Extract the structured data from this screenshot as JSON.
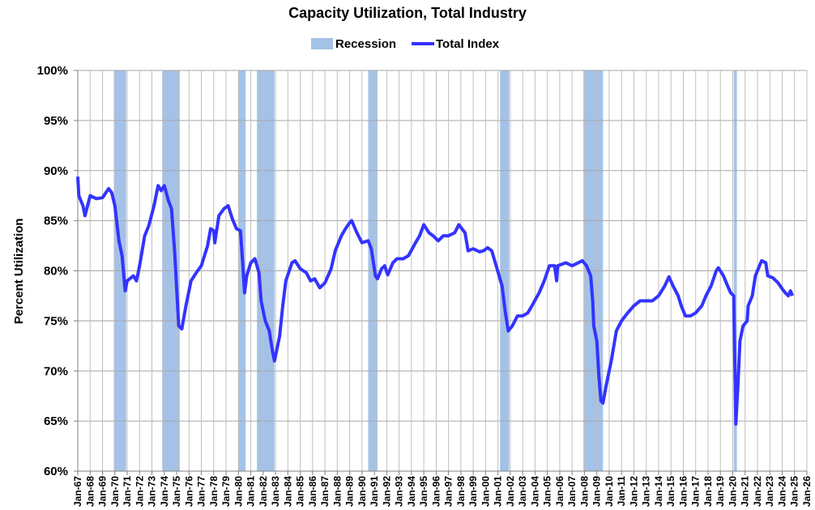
{
  "chart_data": {
    "type": "line",
    "title": "Capacity Utilization, Total Industry",
    "ylabel": "Percent Utilization",
    "xlabel": "",
    "ylim": [
      60,
      100
    ],
    "xlim": [
      "1967-01",
      "2026-01"
    ],
    "yticks": [
      "60%",
      "65%",
      "70%",
      "75%",
      "80%",
      "85%",
      "90%",
      "95%",
      "100%"
    ],
    "ytick_values": [
      60,
      65,
      70,
      75,
      80,
      85,
      90,
      95,
      100
    ],
    "xticks": [
      "Jan-67",
      "Jan-68",
      "Jan-69",
      "Jan-70",
      "Jan-71",
      "Jan-72",
      "Jan-73",
      "Jan-74",
      "Jan-75",
      "Jan-76",
      "Jan-77",
      "Jan-78",
      "Jan-79",
      "Jan-80",
      "Jan-81",
      "Jan-82",
      "Jan-83",
      "Jan-84",
      "Jan-85",
      "Jan-86",
      "Jan-87",
      "Jan-88",
      "Jan-89",
      "Jan-90",
      "Jan-91",
      "Jan-92",
      "Jan-93",
      "Jan-94",
      "Jan-95",
      "Jan-96",
      "Jan-97",
      "Jan-98",
      "Jan-99",
      "Jan-00",
      "Jan-01",
      "Jan-02",
      "Jan-03",
      "Jan-04",
      "Jan-05",
      "Jan-06",
      "Jan-07",
      "Jan-08",
      "Jan-09",
      "Jan-10",
      "Jan-11",
      "Jan-12",
      "Jan-13",
      "Jan-14",
      "Jan-15",
      "Jan-16",
      "Jan-17",
      "Jan-18",
      "Jan-19",
      "Jan-20",
      "Jan-21",
      "Jan-22",
      "Jan-23",
      "Jan-24",
      "Jan-25",
      "Jan-26"
    ],
    "grid": true,
    "legend_placement": "top",
    "legend": [
      "Recession",
      "Total Index"
    ],
    "colors": {
      "line": "#3333ff",
      "recession": "#a4c2e8",
      "grid": "#bfbfbf"
    },
    "recessions": [
      [
        "1969-12",
        "1970-11"
      ],
      [
        "1973-11",
        "1975-03"
      ],
      [
        "1980-01",
        "1980-07"
      ],
      [
        "1981-07",
        "1982-11"
      ],
      [
        "1990-07",
        "1991-03"
      ],
      [
        "2001-03",
        "2001-11"
      ],
      [
        "2007-12",
        "2009-06"
      ],
      [
        "2020-02",
        "2020-04"
      ]
    ],
    "series": [
      {
        "name": "Total Index",
        "x": [
          "1967-01",
          "1967-02",
          "1967-06",
          "1967-08",
          "1968-01",
          "1968-07",
          "1969-01",
          "1969-07",
          "1969-10",
          "1970-01",
          "1970-05",
          "1970-08",
          "1970-11",
          "1971-01",
          "1971-07",
          "1971-10",
          "1972-01",
          "1972-06",
          "1972-10",
          "1973-03",
          "1973-07",
          "1973-10",
          "1974-01",
          "1974-05",
          "1974-08",
          "1974-11",
          "1975-03",
          "1975-06",
          "1975-10",
          "1976-03",
          "1976-08",
          "1977-01",
          "1977-07",
          "1977-10",
          "1978-01",
          "1978-02",
          "1978-06",
          "1978-11",
          "1979-03",
          "1979-07",
          "1979-11",
          "1980-03",
          "1980-05",
          "1980-07",
          "1980-09",
          "1981-01",
          "1981-05",
          "1981-07",
          "1981-09",
          "1981-11",
          "1982-03",
          "1982-07",
          "1982-10",
          "1982-12",
          "1983-05",
          "1983-08",
          "1983-11",
          "1984-05",
          "1984-08",
          "1985-01",
          "1985-07",
          "1985-11",
          "1986-03",
          "1986-08",
          "1987-01",
          "1987-07",
          "1987-11",
          "1988-05",
          "1988-09",
          "1989-01",
          "1989-03",
          "1989-08",
          "1990-01",
          "1990-07",
          "1990-10",
          "1991-02",
          "1991-04",
          "1991-08",
          "1991-11",
          "1992-02",
          "1992-07",
          "1992-11",
          "1993-05",
          "1993-10",
          "1994-05",
          "1994-09",
          "1995-01",
          "1995-06",
          "1995-10",
          "1996-03",
          "1996-08",
          "1997-01",
          "1997-07",
          "1997-11",
          "1998-05",
          "1998-08",
          "1999-01",
          "1999-07",
          "1999-11",
          "2000-03",
          "2000-07",
          "2000-11",
          "2001-05",
          "2001-08",
          "2001-11",
          "2002-03",
          "2002-08",
          "2003-01",
          "2003-06",
          "2003-10",
          "2004-05",
          "2004-10",
          "2005-03",
          "2005-08",
          "2005-10",
          "2005-11",
          "2006-07",
          "2007-01",
          "2007-07",
          "2007-11",
          "2008-03",
          "2008-07",
          "2008-09",
          "2008-10",
          "2009-01",
          "2009-03",
          "2009-05",
          "2009-07",
          "2009-10",
          "2010-03",
          "2010-08",
          "2011-01",
          "2011-07",
          "2012-01",
          "2012-07",
          "2013-01",
          "2013-07",
          "2014-01",
          "2014-07",
          "2014-11",
          "2015-03",
          "2015-08",
          "2015-11",
          "2016-03",
          "2016-08",
          "2017-01",
          "2017-07",
          "2017-11",
          "2018-04",
          "2018-09",
          "2018-11",
          "2019-04",
          "2019-08",
          "2019-11",
          "2020-02",
          "2020-03",
          "2020-04",
          "2020-06",
          "2020-08",
          "2020-11",
          "2021-03",
          "2021-04",
          "2021-08",
          "2021-11",
          "2022-03",
          "2022-05",
          "2022-09",
          "2022-11",
          "2023-04",
          "2023-09",
          "2024-01",
          "2024-04",
          "2024-07",
          "2024-09",
          "2024-11"
        ],
        "y": [
          89.4,
          87.5,
          86.5,
          85.5,
          87.5,
          87.2,
          87.3,
          88.2,
          87.8,
          86.5,
          83.0,
          81.5,
          78.0,
          79.0,
          79.5,
          79.0,
          80.5,
          83.5,
          84.5,
          86.5,
          88.5,
          88.0,
          88.5,
          87.0,
          86.2,
          82.0,
          74.5,
          74.2,
          76.5,
          79.0,
          79.8,
          80.5,
          82.5,
          84.2,
          84.0,
          82.8,
          85.5,
          86.2,
          86.5,
          85.2,
          84.2,
          84.0,
          81.0,
          77.8,
          79.5,
          80.8,
          81.2,
          80.5,
          79.8,
          77.0,
          75.0,
          74.0,
          72.0,
          71.0,
          73.5,
          76.5,
          79.0,
          80.8,
          81.0,
          80.2,
          79.8,
          79.0,
          79.2,
          78.3,
          78.8,
          80.2,
          82.0,
          83.5,
          84.2,
          84.8,
          85.0,
          83.8,
          82.8,
          83.0,
          82.2,
          79.5,
          79.2,
          80.2,
          80.5,
          79.6,
          80.8,
          81.2,
          81.2,
          81.5,
          82.8,
          83.5,
          84.6,
          83.8,
          83.5,
          83.0,
          83.5,
          83.5,
          83.8,
          84.6,
          83.8,
          82.0,
          82.2,
          81.9,
          82.0,
          82.3,
          82.0,
          80.6,
          78.5,
          76.0,
          74.0,
          74.5,
          75.5,
          75.5,
          75.8,
          76.5,
          77.8,
          79.0,
          80.5,
          80.5,
          79.0,
          80.5,
          80.8,
          80.5,
          80.8,
          81.0,
          80.5,
          79.5,
          77.0,
          74.5,
          73.0,
          69.5,
          67.0,
          66.8,
          68.5,
          71.0,
          74.0,
          75.0,
          75.8,
          76.5,
          77.0,
          77.0,
          77.0,
          77.5,
          78.5,
          79.4,
          78.5,
          77.5,
          76.5,
          75.5,
          75.5,
          75.8,
          76.5,
          77.5,
          78.5,
          80.0,
          80.3,
          79.5,
          78.5,
          77.8,
          77.5,
          71.0,
          64.7,
          68.5,
          73.0,
          74.5,
          75.0,
          76.5,
          77.5,
          79.5,
          80.5,
          81.0,
          80.8,
          79.5,
          79.3,
          78.8,
          78.2,
          77.8,
          77.5,
          78.0,
          77.5
        ]
      }
    ]
  }
}
